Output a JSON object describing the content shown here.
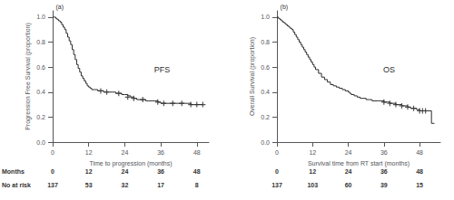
{
  "chart_data": [
    {
      "type": "step",
      "title": "(a)",
      "annotations": [
        "PFS"
      ],
      "xlabel": "Time to progression (months)",
      "ylabel": "Progression Free Survival (proportion)",
      "xlim": [
        0,
        52
      ],
      "ylim": [
        0.0,
        1.05
      ],
      "xticks": [
        0,
        12,
        24,
        36,
        48
      ],
      "yticks": [
        {
          "value": 0,
          "label": "0.0"
        },
        0.2,
        0.4,
        0.6,
        0.8,
        {
          "value": 1,
          "label": "1.0"
        }
      ],
      "grid": false,
      "series": [
        {
          "type": "step",
          "color": "#2c2c2c",
          "x": [
            0,
            0.5,
            1,
            1.5,
            2,
            2.5,
            3,
            3.5,
            4,
            4.5,
            5,
            5.5,
            6,
            6.5,
            7,
            7.5,
            8,
            8.5,
            9,
            9.5,
            10,
            10.5,
            11,
            11.5,
            12,
            12.5,
            13,
            14,
            15,
            16,
            17,
            18,
            19,
            20,
            21,
            22,
            23,
            24,
            25,
            26,
            27,
            28,
            29,
            30,
            31,
            32,
            33,
            34,
            35,
            36,
            37,
            38,
            39,
            40,
            41,
            42,
            43,
            44,
            45,
            46,
            47,
            48,
            49,
            50
          ],
          "values": [
            1.0,
            1.0,
            0.99,
            0.98,
            0.97,
            0.96,
            0.94,
            0.92,
            0.9,
            0.87,
            0.84,
            0.81,
            0.78,
            0.74,
            0.7,
            0.66,
            0.62,
            0.59,
            0.56,
            0.53,
            0.51,
            0.49,
            0.47,
            0.45,
            0.44,
            0.43,
            0.42,
            0.42,
            0.41,
            0.41,
            0.4,
            0.4,
            0.4,
            0.4,
            0.39,
            0.39,
            0.38,
            0.38,
            0.37,
            0.36,
            0.35,
            0.34,
            0.34,
            0.34,
            0.33,
            0.33,
            0.33,
            0.33,
            0.32,
            0.31,
            0.31,
            0.31,
            0.31,
            0.31,
            0.31,
            0.31,
            0.31,
            0.31,
            0.31,
            0.3,
            0.3,
            0.3,
            0.3,
            0.3
          ]
        },
        {
          "type": "scatter",
          "marker": "plus",
          "color": "#2c2c2c",
          "x": [
            16,
            18,
            22,
            25,
            27,
            30,
            35,
            37,
            40,
            43,
            46,
            48,
            50
          ],
          "values": [
            0.41,
            0.4,
            0.39,
            0.36,
            0.35,
            0.34,
            0.32,
            0.31,
            0.31,
            0.31,
            0.3,
            0.3,
            0.3
          ]
        }
      ],
      "at_risk_table": {
        "row_labels": [
          "Months",
          "No at risk"
        ],
        "months": [
          0,
          12,
          24,
          36,
          48
        ],
        "at_risk": [
          137,
          53,
          32,
          17,
          8
        ]
      }
    },
    {
      "type": "step",
      "title": "(b)",
      "annotations": [
        "OS"
      ],
      "xlabel": "Survival time from RT start (months)",
      "ylabel": "Overall Survival (proportion)",
      "xlim": [
        0,
        55
      ],
      "ylim": [
        0.0,
        1.05
      ],
      "xticks": [
        0,
        12,
        24,
        36,
        48
      ],
      "yticks": [
        {
          "value": 0,
          "label": "0.0"
        },
        0.2,
        0.4,
        0.6,
        0.8,
        {
          "value": 1,
          "label": "1.0"
        }
      ],
      "grid": false,
      "series": [
        {
          "type": "step",
          "color": "#2c2c2c",
          "x": [
            0,
            0.5,
            1,
            1.5,
            2,
            2.5,
            3,
            3.5,
            4,
            4.5,
            5,
            5.5,
            6,
            6.5,
            7,
            7.5,
            8,
            8.5,
            9,
            9.5,
            10,
            10.5,
            11,
            11.5,
            12,
            12.5,
            13,
            14,
            15,
            16,
            17,
            18,
            19,
            20,
            21,
            22,
            23,
            24,
            24.5,
            25,
            26,
            27,
            28,
            29,
            30,
            31,
            32,
            33,
            34,
            35,
            36,
            37,
            38,
            39,
            40,
            41,
            42,
            43,
            44,
            45,
            46,
            47,
            48,
            49,
            50,
            51,
            52,
            53
          ],
          "values": [
            1.0,
            0.99,
            0.98,
            0.97,
            0.96,
            0.95,
            0.94,
            0.93,
            0.92,
            0.91,
            0.9,
            0.88,
            0.86,
            0.84,
            0.82,
            0.8,
            0.78,
            0.76,
            0.74,
            0.72,
            0.7,
            0.68,
            0.66,
            0.64,
            0.62,
            0.6,
            0.58,
            0.55,
            0.52,
            0.5,
            0.48,
            0.46,
            0.45,
            0.44,
            0.43,
            0.42,
            0.41,
            0.4,
            0.39,
            0.38,
            0.37,
            0.36,
            0.35,
            0.35,
            0.34,
            0.34,
            0.33,
            0.33,
            0.33,
            0.33,
            0.32,
            0.32,
            0.31,
            0.31,
            0.3,
            0.3,
            0.29,
            0.29,
            0.28,
            0.27,
            0.27,
            0.26,
            0.25,
            0.25,
            0.25,
            0.25,
            0.15,
            0.15
          ]
        },
        {
          "type": "scatter",
          "marker": "plus",
          "color": "#2c2c2c",
          "x": [
            36,
            38,
            40,
            42,
            44,
            46,
            48,
            49,
            50
          ],
          "values": [
            0.32,
            0.31,
            0.3,
            0.29,
            0.28,
            0.27,
            0.25,
            0.25,
            0.25
          ]
        }
      ],
      "at_risk_table": {
        "months": [
          0,
          12,
          24,
          36,
          48
        ],
        "at_risk": [
          137,
          103,
          60,
          39,
          15
        ]
      }
    }
  ]
}
